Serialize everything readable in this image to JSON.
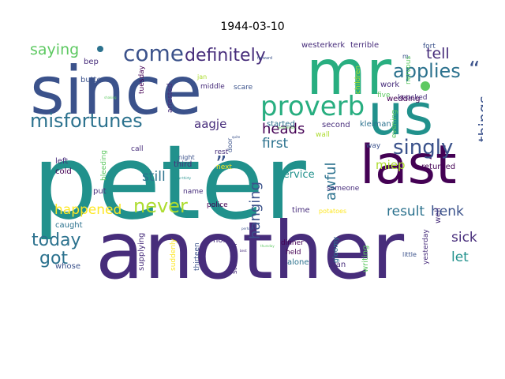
{
  "title": "1944-03-10",
  "colors": {
    "dark_purple": "#440154",
    "purple": "#472d7b",
    "indigo": "#3b528b",
    "blue": "#2c728e",
    "teal": "#21918c",
    "green": "#28ae80",
    "light_green": "#5ec962",
    "lime": "#addc30",
    "yellow": "#fde725"
  },
  "words": [
    {
      "text": "peter",
      "color": "#21918c"
    },
    {
      "text": "another",
      "color": "#472d7b"
    },
    {
      "text": "since",
      "color": "#3b528b"
    },
    {
      "text": "mr",
      "color": "#28ae80"
    },
    {
      "text": "us",
      "color": "#21918c"
    },
    {
      "text": "last",
      "color": "#440154"
    },
    {
      "text": "proverb",
      "color": "#28ae80"
    },
    {
      "text": "misfortunes",
      "color": "#2c728e"
    },
    {
      "text": "come",
      "color": "#3b528b"
    },
    {
      "text": "definitely",
      "color": "#472d7b"
    },
    {
      "text": "singly",
      "color": "#3b528b"
    },
    {
      "text": "applies",
      "color": "#2c728e"
    },
    {
      "text": "never",
      "color": "#addc30"
    },
    {
      "text": "today",
      "color": "#2c728e"
    },
    {
      "text": "got",
      "color": "#2c728e"
    },
    {
      "text": "saying",
      "color": "#5ec962"
    },
    {
      "text": "tell",
      "color": "#472d7b"
    },
    {
      "text": "things",
      "color": "#3b528b"
    },
    {
      "text": "awful",
      "color": "#2c728e"
    },
    {
      "text": "heads",
      "color": "#440154"
    },
    {
      "text": "first",
      "color": "#2c728e"
    },
    {
      "text": "aagje",
      "color": "#472d7b"
    },
    {
      "text": "hanging",
      "color": "#3b528b"
    },
    {
      "text": "happened",
      "color": "#fde725"
    },
    {
      "text": "still",
      "color": "#2c728e"
    },
    {
      "text": "result",
      "color": "#2c728e"
    },
    {
      "text": "henk",
      "color": "#3b528b"
    },
    {
      "text": "miep",
      "color": "#addc30"
    },
    {
      "text": "sick",
      "color": "#472d7b"
    },
    {
      "text": "let",
      "color": "#21918c"
    },
    {
      "text": "”",
      "color": "#3b528b"
    },
    {
      "text": "“",
      "color": "#3b528b"
    },
    {
      "text": "westerkerk",
      "color": "#472d7b"
    },
    {
      "text": "terrible",
      "color": "#472d7b"
    },
    {
      "text": "fort",
      "color": "#3b528b"
    },
    {
      "text": "m.",
      "color": "#3b528b"
    },
    {
      "text": "bep",
      "color": "#472d7b"
    },
    {
      "text": "butter",
      "color": "#3b528b"
    },
    {
      "text": "jan",
      "color": "#addc30"
    },
    {
      "text": "middle",
      "color": "#472d7b"
    },
    {
      "text": "scare",
      "color": "#3b528b"
    },
    {
      "text": "tuesday",
      "color": "#440154"
    },
    {
      "text": "arrested",
      "color": "#472d7b"
    },
    {
      "text": "children",
      "color": "#addc30"
    },
    {
      "text": "nervous",
      "color": "#5ec962"
    },
    {
      "text": "work",
      "color": "#472d7b"
    },
    {
      "text": "wedding",
      "color": "#440154"
    },
    {
      "text": "knocked",
      "color": "#472d7b"
    },
    {
      "text": "five",
      "color": "#5ec962"
    },
    {
      "text": "started",
      "color": "#2c728e"
    },
    {
      "text": "second",
      "color": "#472d7b"
    },
    {
      "text": "kleiman",
      "color": "#2c728e"
    },
    {
      "text": "evening",
      "color": "#5ec962"
    },
    {
      "text": "wall",
      "color": "#addc30"
    },
    {
      "text": "left",
      "color": "#472d7b"
    },
    {
      "text": "cold",
      "color": "#440154"
    },
    {
      "text": "bleeding",
      "color": "#5ec962"
    },
    {
      "text": "call",
      "color": "#472d7b"
    },
    {
      "text": "third",
      "color": "#472d7b"
    },
    {
      "text": "rest",
      "color": "#472d7b"
    },
    {
      "text": "night",
      "color": "#3b528b"
    },
    {
      "text": "next",
      "color": "#fde725"
    },
    {
      "text": "door",
      "color": "#3b528b"
    },
    {
      "text": "service",
      "color": "#21918c"
    },
    {
      "text": "returned",
      "color": "#440154"
    },
    {
      "text": "way",
      "color": "#3b528b"
    },
    {
      "text": "put",
      "color": "#472d7b"
    },
    {
      "text": "name",
      "color": "#472d7b"
    },
    {
      "text": "police",
      "color": "#440154"
    },
    {
      "text": "caught",
      "color": "#2c728e"
    },
    {
      "text": "time",
      "color": "#472d7b"
    },
    {
      "text": "potatoes",
      "color": "#fde725"
    },
    {
      "text": "someone",
      "color": "#472d7b"
    },
    {
      "text": "well",
      "color": "#472d7b"
    },
    {
      "text": "supplying",
      "color": "#472d7b"
    },
    {
      "text": "suddenly",
      "color": "#fde725"
    },
    {
      "text": "thirteen",
      "color": "#3b528b"
    },
    {
      "text": "hold",
      "color": "#472d7b"
    },
    {
      "text": "stomach",
      "color": "#472d7b"
    },
    {
      "text": "dinner",
      "color": "#440154"
    },
    {
      "text": "held",
      "color": "#440154"
    },
    {
      "text": "alone",
      "color": "#2c728e"
    },
    {
      "text": "gloomy",
      "color": "#2c728e"
    },
    {
      "text": "writing",
      "color": "#5ec962"
    },
    {
      "text": "man",
      "color": "#472d7b"
    },
    {
      "text": "yesterday",
      "color": "#472d7b"
    },
    {
      "text": "little",
      "color": "#3b528b"
    },
    {
      "text": "whose",
      "color": "#3b528b"
    }
  ],
  "tiny_words": [
    {
      "text": "forward",
      "color": "#3b528b"
    },
    {
      "text": "wednesday",
      "color": "#5ec962"
    },
    {
      "text": "quite",
      "color": "#3b528b"
    },
    {
      "text": "shaking",
      "color": "#5ec962"
    },
    {
      "text": "thursday",
      "color": "#5ec962"
    },
    {
      "text": "perhaps",
      "color": "#3b528b"
    },
    {
      "text": "four-thirty",
      "color": "#21918c"
    },
    {
      "text": "best",
      "color": "#472d7b"
    }
  ]
}
